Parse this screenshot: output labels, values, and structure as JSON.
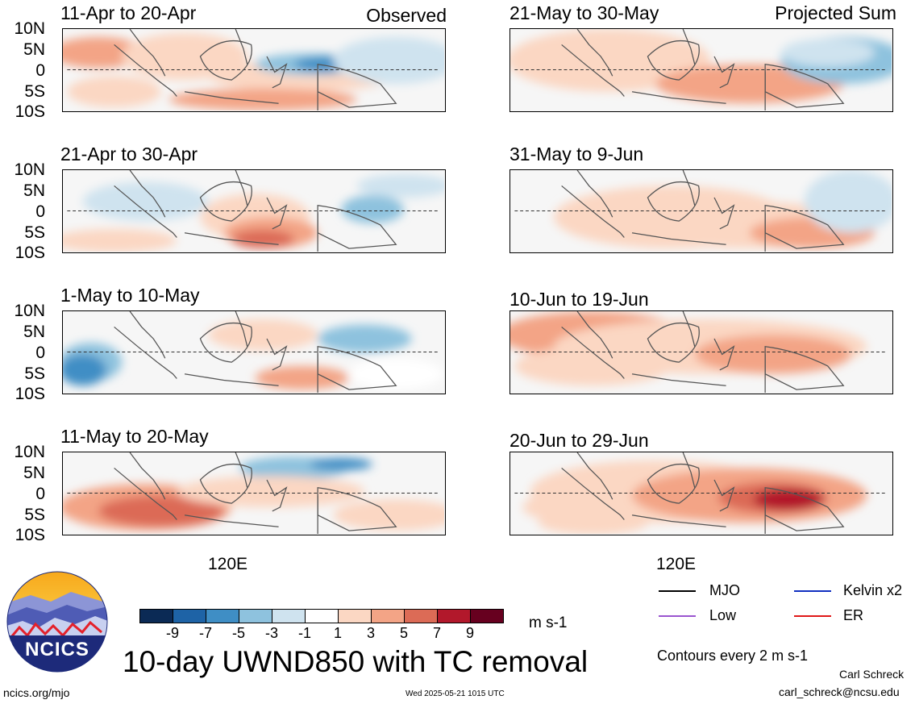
{
  "figure": {
    "title": "10-day UWND850 with TC removal",
    "units": "m s-1",
    "contour_note": "Contours every 2 m s-1",
    "credit_name": "Carl Schreck",
    "credit_email": "carl_schreck@ncsu.edu",
    "url": "ncics.org/mjo",
    "timestamp": "Wed 2025-05-21 1015 UTC",
    "logo_text": "NCICS"
  },
  "columns": {
    "left_tag": "Observed",
    "right_tag": "Projected Sum"
  },
  "axes": {
    "lat_ticks": [
      "10N",
      "5N",
      "0",
      "5S",
      "10S"
    ],
    "lon_tick": "120E"
  },
  "panels": {
    "left": [
      {
        "period": "11-Apr to 20-Apr"
      },
      {
        "period": "21-Apr to 30-Apr"
      },
      {
        "period": "1-May to 10-May"
      },
      {
        "period": "11-May to 20-May"
      }
    ],
    "right": [
      {
        "period": "21-May to 30-May"
      },
      {
        "period": "31-May to 9-Jun"
      },
      {
        "period": "10-Jun to 19-Jun"
      },
      {
        "period": "20-Jun to 29-Jun"
      }
    ]
  },
  "colorbar": {
    "labels": [
      "-9",
      "-7",
      "-5",
      "-3",
      "-1",
      "1",
      "3",
      "5",
      "7",
      "9"
    ],
    "colors": [
      "#0b2a55",
      "#1e63a6",
      "#3f8ec5",
      "#8ec2de",
      "#cfe3ef",
      "#ffffff",
      "#fbd7c3",
      "#f3a486",
      "#dc6b56",
      "#b2182b",
      "#67001f"
    ]
  },
  "legend": {
    "items": [
      {
        "label": "MJO",
        "color": "#000000"
      },
      {
        "label": "Kelvin x2",
        "color": "#1030c0"
      },
      {
        "label": "Low",
        "color": "#9a55d0"
      },
      {
        "label": "ER",
        "color": "#e01818"
      }
    ]
  }
}
